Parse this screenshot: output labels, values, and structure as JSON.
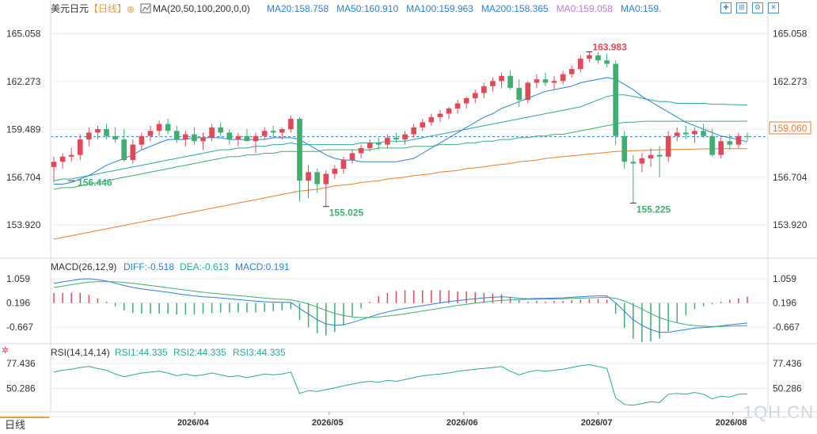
{
  "header": {
    "instrument": "美元日元",
    "period_tag": "【日线】",
    "ma_title": "MA(20,50,100,200,0,0)",
    "ma_values": [
      {
        "text": "MA20:158.758",
        "color": "#2c7fd8"
      },
      {
        "text": "MA50:160.910",
        "color": "#2c7fd8"
      },
      {
        "text": "MA100:159.963",
        "color": "#2c7fd8"
      },
      {
        "text": "MA200:158.365",
        "color": "#2c7fd8"
      },
      {
        "text": "MA0:159.058",
        "color": "#c077d6"
      },
      {
        "text": "MA0:159.",
        "color": "#2c7fd8"
      }
    ]
  },
  "toolbar_icons": [
    "crosshair-icon",
    "zoom-in-icon",
    "settings-icon",
    "close-icon"
  ],
  "price_axis": {
    "ticks": [
      "165.058",
      "162.273",
      "159.489",
      "156.704",
      "153.920"
    ],
    "current_price": "159.060",
    "high_label": "163.983",
    "low_label_1": "155.025",
    "low_label_2": "155.225",
    "ma_label": "156.446"
  },
  "macd": {
    "title": "MACD(26,12,9)",
    "diff": "DIFF:-0.518",
    "dea": "DEA:-0.613",
    "macd": "MACD:0.191",
    "ticks": [
      "1.059",
      "0.196",
      "-0.667"
    ]
  },
  "rsi": {
    "title": "RSI(14,14,14)",
    "rsi1": "RSI1:44.335",
    "rsi2": "RSI2:44.335",
    "rsi3": "RSI3:44.335",
    "ticks": [
      "77.436",
      "50.286"
    ]
  },
  "x_axis": {
    "ticks": [
      "2026/04",
      "2026/05",
      "2026/06",
      "2026/07",
      "2026/08"
    ]
  },
  "watermark": "1QH.CN",
  "tabs": {
    "active": "日线"
  },
  "colors": {
    "up": "#e04a58",
    "down": "#3fae6f",
    "ma20": "#2c7fd8",
    "ma50": "#3fae6f",
    "ma100": "#2aa6a0",
    "ma200": "#f07a26",
    "grid": "#e9edf3"
  },
  "chart_data": {
    "type": "candlestick",
    "title": "",
    "ylim": [
      152.5,
      166.0
    ],
    "y_ticks": [
      165.058,
      162.273,
      159.489,
      156.704,
      153.92
    ],
    "ohlc": [
      [
        157.3,
        157.9,
        156.4,
        157.6
      ],
      [
        157.6,
        158.1,
        157.2,
        157.9
      ],
      [
        157.9,
        158.4,
        157.6,
        158.0
      ],
      [
        158.0,
        159.2,
        157.7,
        158.9
      ],
      [
        158.9,
        159.6,
        158.5,
        159.3
      ],
      [
        159.3,
        159.7,
        158.9,
        159.5
      ],
      [
        159.5,
        159.8,
        158.9,
        159.1
      ],
      [
        159.1,
        159.6,
        158.7,
        158.9
      ],
      [
        158.9,
        159.5,
        157.6,
        157.7
      ],
      [
        157.7,
        158.9,
        157.5,
        158.6
      ],
      [
        158.6,
        159.3,
        158.3,
        159.1
      ],
      [
        159.1,
        159.7,
        158.8,
        159.4
      ],
      [
        159.4,
        160.0,
        159.1,
        159.8
      ],
      [
        159.8,
        160.1,
        159.2,
        159.4
      ],
      [
        159.4,
        159.7,
        158.7,
        158.9
      ],
      [
        158.9,
        159.4,
        158.5,
        159.2
      ],
      [
        159.2,
        159.6,
        158.6,
        158.8
      ],
      [
        158.8,
        159.3,
        158.3,
        159.0
      ],
      [
        159.0,
        159.8,
        158.8,
        159.6
      ],
      [
        159.6,
        159.9,
        159.1,
        159.3
      ],
      [
        159.3,
        159.5,
        158.6,
        158.9
      ],
      [
        158.9,
        159.3,
        158.5,
        159.1
      ],
      [
        159.1,
        159.5,
        158.8,
        158.8
      ],
      [
        158.8,
        159.3,
        158.1,
        159.1
      ],
      [
        159.1,
        159.6,
        158.9,
        159.4
      ],
      [
        159.4,
        159.7,
        159.0,
        159.3
      ],
      [
        159.3,
        159.6,
        158.9,
        159.5
      ],
      [
        159.5,
        160.3,
        159.3,
        160.1
      ],
      [
        160.1,
        160.2,
        155.3,
        156.5
      ],
      [
        156.5,
        157.4,
        155.5,
        157.0
      ],
      [
        157.0,
        157.2,
        155.8,
        156.3
      ],
      [
        156.3,
        157.1,
        155.0,
        156.9
      ],
      [
        156.9,
        157.4,
        156.6,
        157.2
      ],
      [
        157.2,
        157.9,
        156.9,
        157.7
      ],
      [
        157.7,
        158.3,
        157.5,
        158.1
      ],
      [
        158.1,
        158.6,
        157.8,
        158.4
      ],
      [
        158.4,
        158.9,
        158.2,
        158.7
      ],
      [
        158.7,
        159.0,
        158.3,
        158.6
      ],
      [
        158.6,
        159.2,
        158.4,
        159.0
      ],
      [
        159.0,
        159.3,
        158.7,
        158.9
      ],
      [
        158.9,
        159.4,
        158.6,
        159.2
      ],
      [
        159.2,
        159.8,
        159.0,
        159.6
      ],
      [
        159.6,
        160.1,
        159.4,
        159.9
      ],
      [
        159.9,
        160.4,
        159.7,
        160.2
      ],
      [
        160.2,
        160.6,
        159.9,
        160.4
      ],
      [
        160.4,
        160.8,
        160.1,
        160.7
      ],
      [
        160.7,
        161.2,
        160.4,
        161.0
      ],
      [
        161.0,
        161.4,
        160.7,
        161.3
      ],
      [
        161.3,
        161.8,
        161.0,
        161.6
      ],
      [
        161.6,
        162.2,
        161.3,
        162.0
      ],
      [
        162.0,
        162.5,
        161.7,
        162.3
      ],
      [
        162.3,
        162.8,
        161.9,
        162.6
      ],
      [
        162.6,
        162.9,
        161.8,
        161.9
      ],
      [
        161.9,
        162.4,
        160.8,
        161.2
      ],
      [
        161.2,
        162.3,
        161.0,
        162.2
      ],
      [
        162.2,
        162.7,
        161.9,
        162.4
      ],
      [
        162.4,
        162.8,
        162.0,
        162.2
      ],
      [
        162.2,
        162.6,
        161.8,
        162.3
      ],
      [
        162.3,
        162.9,
        162.1,
        162.7
      ],
      [
        162.7,
        163.2,
        162.5,
        163.0
      ],
      [
        163.0,
        163.8,
        162.8,
        163.6
      ],
      [
        163.6,
        164.0,
        163.4,
        163.8
      ],
      [
        163.8,
        164.0,
        163.3,
        163.5
      ],
      [
        163.5,
        163.9,
        163.1,
        163.3
      ],
      [
        163.3,
        163.5,
        158.6,
        159.1
      ],
      [
        159.1,
        159.4,
        157.2,
        157.6
      ],
      [
        157.6,
        158.0,
        155.2,
        157.5
      ],
      [
        157.5,
        158.1,
        157.0,
        157.8
      ],
      [
        157.8,
        158.4,
        157.3,
        158.0
      ],
      [
        158.0,
        158.5,
        156.7,
        157.9
      ],
      [
        157.9,
        159.4,
        157.6,
        159.1
      ],
      [
        159.1,
        159.6,
        158.8,
        159.3
      ],
      [
        159.3,
        159.7,
        158.9,
        159.2
      ],
      [
        159.2,
        159.6,
        158.7,
        159.4
      ],
      [
        159.4,
        159.8,
        159.0,
        159.1
      ],
      [
        159.1,
        159.5,
        157.9,
        158.0
      ],
      [
        158.0,
        159.0,
        157.8,
        158.8
      ],
      [
        158.8,
        159.2,
        158.3,
        158.6
      ],
      [
        158.6,
        159.3,
        158.4,
        159.1
      ],
      [
        159.1,
        159.3,
        158.8,
        159.06
      ]
    ],
    "ma20": [
      156.3,
      156.3,
      156.4,
      156.6,
      156.8,
      157.1,
      157.4,
      157.6,
      157.8,
      158.0,
      158.3,
      158.5,
      158.7,
      158.9,
      158.9,
      158.9,
      159.0,
      159.0,
      159.0,
      159.0,
      158.9,
      158.9,
      158.9,
      158.9,
      158.9,
      159.0,
      159.0,
      159.0,
      158.9,
      158.6,
      158.3,
      158.0,
      157.8,
      157.7,
      157.7,
      157.6,
      157.6,
      157.6,
      157.6,
      157.6,
      157.7,
      157.8,
      158.1,
      158.4,
      158.7,
      159.0,
      159.3,
      159.6,
      159.9,
      160.2,
      160.4,
      160.7,
      160.9,
      161.1,
      161.3,
      161.5,
      161.7,
      161.8,
      161.9,
      162.0,
      162.2,
      162.3,
      162.4,
      162.5,
      162.4,
      162.1,
      161.8,
      161.4,
      161.1,
      160.8,
      160.5,
      160.2,
      159.9,
      159.7,
      159.5,
      159.3,
      159.1,
      159.0,
      158.9,
      158.758
    ],
    "ma50": [
      156.5,
      156.6,
      156.6,
      156.7,
      156.8,
      156.9,
      157.0,
      157.1,
      157.2,
      157.3,
      157.4,
      157.5,
      157.6,
      157.7,
      157.8,
      157.9,
      158.0,
      158.1,
      158.2,
      158.3,
      158.3,
      158.4,
      158.4,
      158.5,
      158.5,
      158.6,
      158.6,
      158.7,
      158.6,
      158.6,
      158.6,
      158.6,
      158.6,
      158.6,
      158.6,
      158.7,
      158.7,
      158.7,
      158.8,
      158.8,
      158.8,
      158.9,
      159.0,
      159.1,
      159.2,
      159.3,
      159.4,
      159.5,
      159.6,
      159.7,
      159.8,
      159.9,
      160.0,
      160.1,
      160.2,
      160.3,
      160.4,
      160.5,
      160.6,
      160.7,
      160.8,
      161.0,
      161.2,
      161.4,
      161.5,
      161.5,
      161.4,
      161.3,
      161.2,
      161.1,
      161.1,
      161.0,
      161.0,
      161.0,
      161.0,
      160.95,
      160.95,
      160.93,
      160.92,
      160.91
    ],
    "ma100": [
      156.0,
      156.1,
      156.1,
      156.2,
      156.3,
      156.4,
      156.5,
      156.6,
      156.7,
      156.8,
      156.9,
      157.0,
      157.1,
      157.2,
      157.3,
      157.4,
      157.5,
      157.6,
      157.7,
      157.8,
      157.9,
      157.9,
      158.0,
      158.0,
      158.1,
      158.1,
      158.2,
      158.2,
      158.2,
      158.2,
      158.2,
      158.3,
      158.3,
      158.3,
      158.3,
      158.3,
      158.3,
      158.4,
      158.4,
      158.4,
      158.4,
      158.5,
      158.5,
      158.5,
      158.6,
      158.6,
      158.6,
      158.7,
      158.7,
      158.8,
      158.8,
      158.9,
      158.9,
      159.0,
      159.0,
      159.1,
      159.1,
      159.2,
      159.2,
      159.3,
      159.4,
      159.5,
      159.6,
      159.7,
      159.8,
      159.9,
      159.9,
      159.95,
      159.96,
      159.96,
      159.96,
      159.96,
      159.96,
      159.96,
      159.96,
      159.96,
      159.96,
      159.96,
      159.96,
      159.963
    ],
    "ma200": [
      153.1,
      153.2,
      153.3,
      153.4,
      153.5,
      153.6,
      153.7,
      153.8,
      153.9,
      154.0,
      154.1,
      154.2,
      154.3,
      154.4,
      154.5,
      154.6,
      154.7,
      154.8,
      154.9,
      155.0,
      155.1,
      155.2,
      155.3,
      155.4,
      155.5,
      155.6,
      155.7,
      155.8,
      155.9,
      155.95,
      156.0,
      156.1,
      156.2,
      156.25,
      156.3,
      156.4,
      156.45,
      156.5,
      156.6,
      156.65,
      156.7,
      156.8,
      156.85,
      156.9,
      157.0,
      157.05,
      157.1,
      157.2,
      157.25,
      157.3,
      157.4,
      157.45,
      157.5,
      157.6,
      157.65,
      157.7,
      157.8,
      157.85,
      157.9,
      157.95,
      158.0,
      158.05,
      158.1,
      158.15,
      158.2,
      158.22,
      158.24,
      158.26,
      158.28,
      158.3,
      158.31,
      158.32,
      158.33,
      158.34,
      158.35,
      158.36,
      158.36,
      158.365,
      158.365,
      158.365
    ],
    "macd_range": [
      -1.2,
      1.4
    ],
    "diff": [
      0.9,
      0.95,
      1.0,
      1.05,
      1.06,
      1.03,
      0.98,
      0.9,
      0.82,
      0.75,
      0.7,
      0.66,
      0.62,
      0.58,
      0.53,
      0.49,
      0.45,
      0.42,
      0.4,
      0.38,
      0.35,
      0.32,
      0.29,
      0.26,
      0.24,
      0.23,
      0.22,
      0.22,
      0.0,
      -0.2,
      -0.4,
      -0.55,
      -0.6,
      -0.58,
      -0.5,
      -0.4,
      -0.3,
      -0.2,
      -0.12,
      -0.05,
      0.0,
      0.05,
      0.1,
      0.15,
      0.2,
      0.25,
      0.28,
      0.32,
      0.35,
      0.38,
      0.4,
      0.42,
      0.4,
      0.36,
      0.35,
      0.36,
      0.36,
      0.37,
      0.38,
      0.4,
      0.42,
      0.44,
      0.45,
      0.45,
      0.2,
      -0.1,
      -0.4,
      -0.6,
      -0.75,
      -0.85,
      -0.85,
      -0.8,
      -0.75,
      -0.7,
      -0.68,
      -0.66,
      -0.62,
      -0.58,
      -0.55,
      -0.518
    ],
    "dea": [
      0.75,
      0.8,
      0.85,
      0.9,
      0.94,
      0.96,
      0.96,
      0.95,
      0.93,
      0.9,
      0.86,
      0.82,
      0.78,
      0.74,
      0.7,
      0.66,
      0.62,
      0.58,
      0.55,
      0.52,
      0.49,
      0.46,
      0.43,
      0.4,
      0.37,
      0.35,
      0.33,
      0.31,
      0.25,
      0.16,
      0.05,
      -0.07,
      -0.17,
      -0.25,
      -0.3,
      -0.32,
      -0.32,
      -0.3,
      -0.27,
      -0.23,
      -0.19,
      -0.14,
      -0.09,
      -0.04,
      0.01,
      0.06,
      0.11,
      0.15,
      0.19,
      0.23,
      0.26,
      0.29,
      0.31,
      0.32,
      0.33,
      0.33,
      0.34,
      0.34,
      0.35,
      0.36,
      0.37,
      0.38,
      0.39,
      0.4,
      0.36,
      0.27,
      0.13,
      -0.02,
      -0.18,
      -0.32,
      -0.43,
      -0.51,
      -0.57,
      -0.61,
      -0.63,
      -0.64,
      -0.64,
      -0.63,
      -0.62,
      -0.613
    ],
    "rsi_range": [
      25,
      85
    ],
    "rsi": [
      68,
      70,
      71,
      73,
      74,
      72,
      70,
      66,
      63,
      65,
      67,
      68,
      69,
      67,
      64,
      66,
      64,
      65,
      67,
      65,
      63,
      64,
      62,
      64,
      66,
      65,
      66,
      68,
      45,
      48,
      47,
      49,
      51,
      53,
      55,
      57,
      58,
      57,
      59,
      58,
      60,
      62,
      64,
      65,
      66,
      67,
      69,
      70,
      71,
      72,
      73,
      74,
      69,
      65,
      68,
      70,
      69,
      70,
      71,
      73,
      75,
      76,
      74,
      72,
      40,
      33,
      32,
      34,
      36,
      35,
      44,
      45,
      44,
      46,
      44,
      39,
      42,
      41,
      44,
      44.335
    ]
  }
}
